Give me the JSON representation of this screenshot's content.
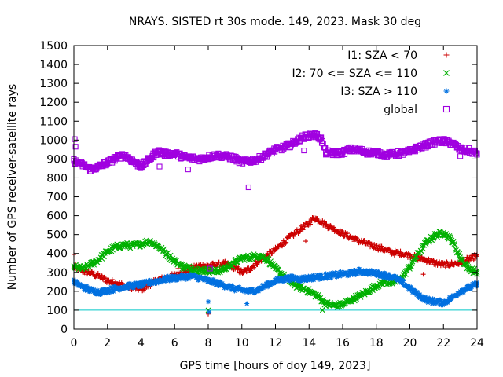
{
  "chart_data": {
    "type": "scatter",
    "title": "NRAYS. SISTED rt 30s mode. 149, 2023. Mask 30 deg",
    "xlabel": "GPS time [hours of doy 149, 2023]",
    "ylabel": "Number of GPS receiver-satellite rays",
    "xlim": [
      0,
      24
    ],
    "ylim": [
      0,
      1500
    ],
    "x_ticks": [
      0,
      2,
      4,
      6,
      8,
      10,
      12,
      14,
      16,
      18,
      20,
      22,
      24
    ],
    "y_ticks": [
      0,
      100,
      200,
      300,
      400,
      500,
      600,
      700,
      800,
      900,
      1000,
      1100,
      1200,
      1300,
      1400,
      1500
    ],
    "legend_position": "top-right",
    "reference_line": {
      "y": 100,
      "color": "#00c8c8"
    },
    "series": [
      {
        "name": "I1: SZA < 70",
        "color": "#cc0000",
        "marker": "plus",
        "x": [
          0,
          0.5,
          1,
          1.5,
          2,
          2.5,
          3,
          3.5,
          4,
          4.5,
          5,
          5.5,
          6,
          6.5,
          7,
          7.5,
          8,
          8.5,
          9,
          9.5,
          10,
          10.5,
          11,
          11.5,
          12,
          12.5,
          13,
          13.5,
          14,
          14.3,
          14.7,
          15,
          15.5,
          16,
          16.5,
          17,
          17.5,
          18,
          18.5,
          19,
          19.5,
          20,
          20.5,
          21,
          21.5,
          22,
          22.5,
          23,
          23.5,
          24
        ],
        "values": [
          330,
          310,
          295,
          280,
          255,
          245,
          230,
          220,
          210,
          235,
          260,
          270,
          285,
          300,
          320,
          335,
          335,
          340,
          345,
          330,
          300,
          320,
          360,
          390,
          420,
          460,
          495,
          530,
          560,
          590,
          570,
          550,
          530,
          505,
          485,
          465,
          450,
          435,
          420,
          405,
          400,
          390,
          375,
          365,
          350,
          340,
          345,
          350,
          370,
          385
        ]
      },
      {
        "name": "I2: 70 <= SZA <= 110",
        "color": "#00b000",
        "marker": "cross",
        "x": [
          0,
          0.5,
          1,
          1.5,
          2,
          2.5,
          3,
          3.5,
          4,
          4.5,
          5,
          5.5,
          6,
          6.5,
          7,
          7.5,
          8,
          8.5,
          9,
          9.5,
          10,
          10.5,
          11,
          11.5,
          12,
          12.5,
          13,
          13.5,
          14,
          14.5,
          15,
          15.5,
          16,
          16.5,
          17,
          17.5,
          18,
          18.5,
          19,
          19.5,
          20,
          20.5,
          21,
          21.5,
          22,
          22.5,
          23,
          23.5,
          24
        ],
        "values": [
          330,
          320,
          340,
          370,
          410,
          435,
          445,
          440,
          450,
          465,
          440,
          400,
          360,
          330,
          320,
          310,
          310,
          305,
          320,
          350,
          375,
          380,
          390,
          370,
          320,
          280,
          240,
          220,
          200,
          175,
          135,
          125,
          130,
          155,
          175,
          200,
          230,
          250,
          245,
          270,
          330,
          400,
          460,
          495,
          510,
          470,
          380,
          320,
          300
        ]
      },
      {
        "name": "I3: SZA > 110",
        "color": "#0070e0",
        "marker": "star",
        "x": [
          0,
          0.5,
          1,
          1.5,
          2,
          2.5,
          3,
          3.5,
          4,
          4.5,
          5,
          5.5,
          6,
          6.5,
          7,
          7.5,
          8,
          8.5,
          9,
          9.5,
          10,
          10.5,
          11,
          11.5,
          12,
          12.5,
          13,
          13.5,
          14,
          14.5,
          15,
          15.5,
          16,
          16.5,
          17,
          17.5,
          18,
          18.5,
          19,
          19.5,
          20,
          20.5,
          21,
          21.5,
          22,
          22.5,
          23,
          23.5,
          24
        ],
        "values": [
          250,
          225,
          205,
          195,
          205,
          215,
          225,
          230,
          235,
          245,
          255,
          265,
          270,
          275,
          280,
          270,
          255,
          245,
          230,
          215,
          205,
          200,
          210,
          235,
          255,
          265,
          270,
          265,
          270,
          275,
          280,
          285,
          290,
          295,
          305,
          300,
          295,
          285,
          275,
          250,
          215,
          180,
          155,
          145,
          140,
          165,
          200,
          220,
          235
        ]
      },
      {
        "name": "global",
        "color": "#a000e0",
        "marker": "square",
        "x": [
          0,
          0.5,
          1,
          1.5,
          2,
          2.5,
          3,
          3.5,
          4,
          4.5,
          5,
          5.5,
          6,
          6.5,
          7,
          7.5,
          8,
          8.5,
          9,
          9.5,
          10,
          10.5,
          11,
          11.5,
          12,
          12.5,
          13,
          13.5,
          14,
          14.3,
          14.7,
          15,
          15.5,
          16,
          16.5,
          17,
          17.5,
          18,
          18.5,
          19,
          19.5,
          20,
          20.5,
          21,
          21.5,
          22,
          22.5,
          23,
          23.5,
          24
        ],
        "values": [
          890,
          870,
          845,
          860,
          880,
          905,
          920,
          890,
          860,
          900,
          940,
          925,
          930,
          910,
          905,
          900,
          910,
          920,
          915,
          905,
          885,
          890,
          900,
          925,
          950,
          960,
          980,
          1010,
          1025,
          1030,
          1010,
          935,
          930,
          935,
          950,
          945,
          935,
          935,
          920,
          925,
          930,
          940,
          960,
          975,
          990,
          995,
          985,
          950,
          945,
          930
        ]
      }
    ],
    "outliers": [
      {
        "series": 0,
        "x": [
          0.0,
          6.2,
          8.0,
          13.8,
          20.8
        ],
        "values": [
          395,
          320,
          80,
          465,
          290
        ]
      },
      {
        "series": 1,
        "x": [
          8.0,
          14.8
        ],
        "values": [
          100,
          100
        ]
      },
      {
        "series": 2,
        "x": [
          8.0,
          8.05,
          10.3
        ],
        "values": [
          145,
          90,
          135
        ]
      },
      {
        "series": 3,
        "x": [
          0.05,
          0.1,
          5.1,
          6.8,
          8.1,
          10.4,
          13.7,
          23.0
        ],
        "values": [
          1005,
          965,
          860,
          845,
          320,
          750,
          945,
          915
        ]
      }
    ]
  }
}
